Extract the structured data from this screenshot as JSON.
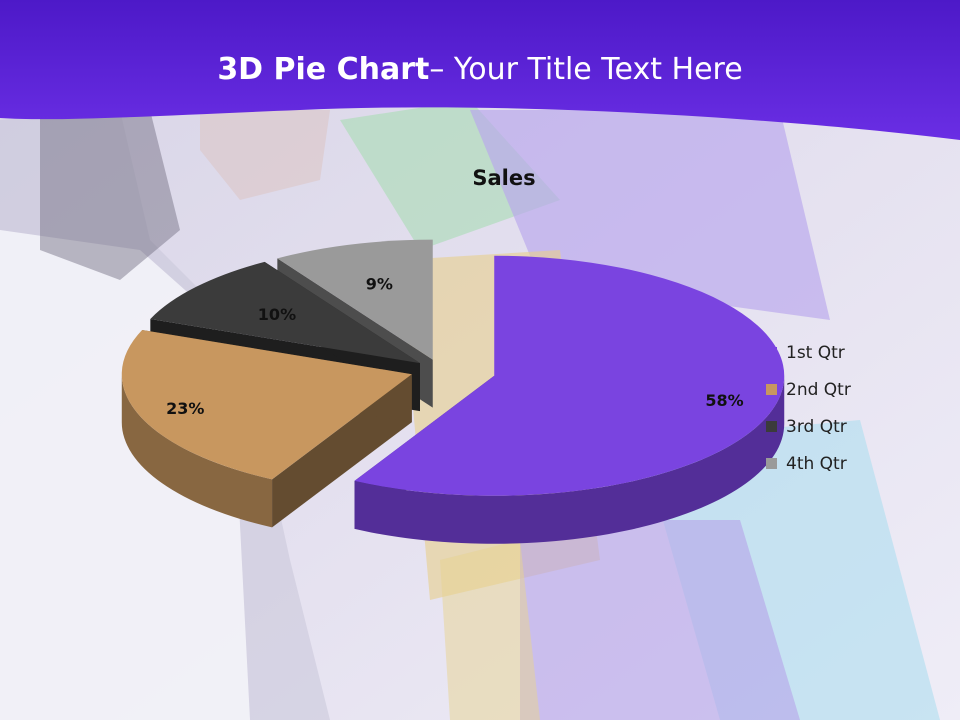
{
  "slide": {
    "title_bold": "3D Pie Chart",
    "title_rest": "– Your Title Text Here"
  },
  "colors": {
    "banner": "#5a1fd6",
    "slice_1": "#7a44e0",
    "slice_2": "#c8975f",
    "slice_3": "#3b3b3b",
    "slice_4": "#9a9a9a"
  },
  "chart_data": {
    "type": "pie",
    "variant": "3d-exploded",
    "title": "Sales",
    "categories": [
      "1st Qtr",
      "2nd Qtr",
      "3rd Qtr",
      "4th Qtr"
    ],
    "values": [
      58,
      23,
      10,
      9
    ],
    "data_labels": [
      "58%",
      "23%",
      "10%",
      "9%"
    ],
    "legend_position": "right"
  }
}
